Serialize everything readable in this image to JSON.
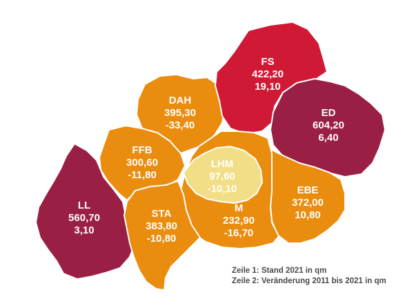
{
  "colors": {
    "ff_red": "#d01a35",
    "dark_wine": "#9a1f45",
    "orange": "#ea8c0e",
    "light_yellow": "#f1de86"
  },
  "regions": [
    {
      "key": "fs",
      "code": "FS",
      "line1": "422,20",
      "line2": "19,10",
      "color": "#d01a35"
    },
    {
      "key": "ed",
      "code": "ED",
      "line1": "604,20",
      "line2": "6,40",
      "color": "#9a1f45"
    },
    {
      "key": "dah",
      "code": "DAH",
      "line1": "395,30",
      "line2": "-33,40",
      "color": "#ea8c0e"
    },
    {
      "key": "ffb",
      "code": "FFB",
      "line1": "300,60",
      "line2": "-11,80",
      "color": "#ea8c0e"
    },
    {
      "key": "lhm",
      "code": "LHM",
      "line1": "97,60",
      "line2": "-10,10",
      "color": "#f1de86"
    },
    {
      "key": "ebe",
      "code": "EBE",
      "line1": "372,00",
      "line2": "10,80",
      "color": "#ea8c0e"
    },
    {
      "key": "ll",
      "code": "LL",
      "line1": "560,70",
      "line2": "3,10",
      "color": "#9a1f45"
    },
    {
      "key": "sta",
      "code": "STA",
      "line1": "383,80",
      "line2": "-10,80",
      "color": "#ea8c0e"
    },
    {
      "key": "m",
      "code": "M",
      "line1": "232,90",
      "line2": "-16,70",
      "color": "#ea8c0e"
    }
  ],
  "legend": {
    "line1": "Zeile 1: Stand 2021 in qm",
    "line2": "Zeile 2: Veränderung 2011 bis 2021 in qm"
  }
}
